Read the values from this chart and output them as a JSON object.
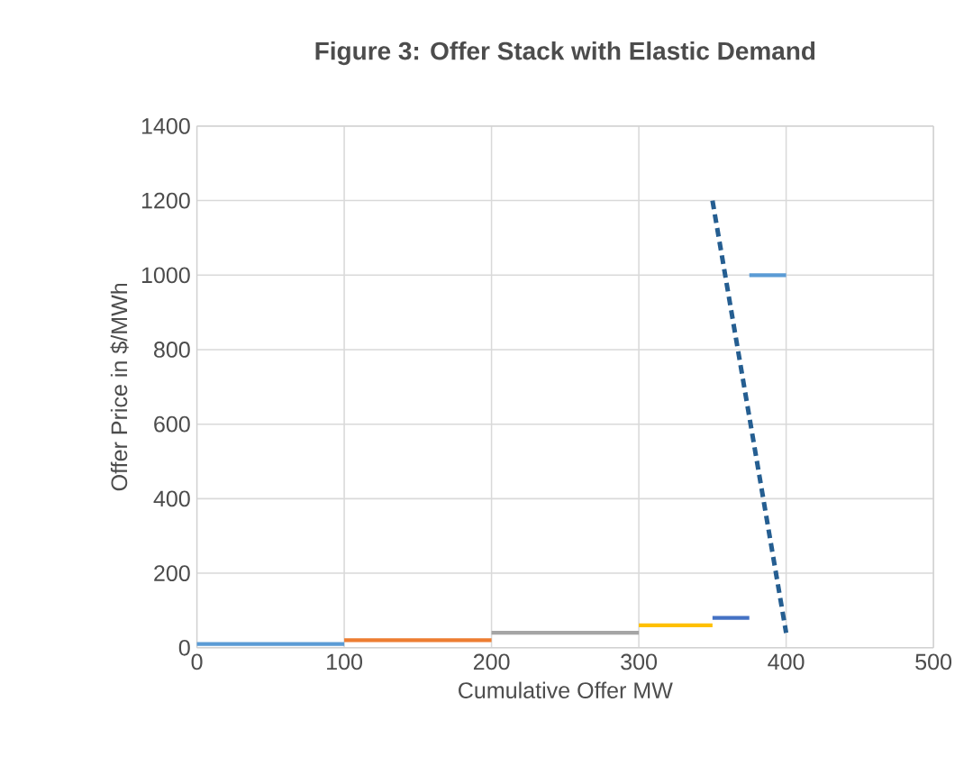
{
  "chart_data": {
    "type": "line",
    "title": "Figure 3: Offer Stack with Elastic Demand",
    "xlabel": "Cumulative Offer MW",
    "ylabel": "Offer Price in $/MWh",
    "xlim": [
      0,
      500
    ],
    "xticks": [
      0,
      100,
      200,
      300,
      400,
      500
    ],
    "ylim": [
      0,
      1400
    ],
    "yticks": [
      0,
      200,
      400,
      600,
      800,
      1000,
      1200,
      1400
    ],
    "grid": true,
    "marker": "none",
    "series": [
      {
        "color": "#5b9bd5",
        "x": [
          0,
          100
        ],
        "values": [
          10,
          10
        ]
      },
      {
        "color": "#ed7d31",
        "x": [
          100,
          200
        ],
        "values": [
          20,
          20
        ]
      },
      {
        "color": "#a5a5a5",
        "x": [
          200,
          300
        ],
        "values": [
          40,
          40
        ]
      },
      {
        "color": "#ffc000",
        "x": [
          300,
          350
        ],
        "values": [
          60,
          60
        ]
      },
      {
        "color": "#4472c4",
        "x": [
          350,
          375
        ],
        "values": [
          80,
          80
        ]
      },
      {
        "color": "#5b9bd5",
        "x": [
          375,
          400
        ],
        "values": [
          1000,
          1000
        ]
      },
      {
        "color": "#255e91",
        "x": [
          350,
          400
        ],
        "values": [
          1200,
          40
        ],
        "line_style": "dashed"
      }
    ]
  }
}
